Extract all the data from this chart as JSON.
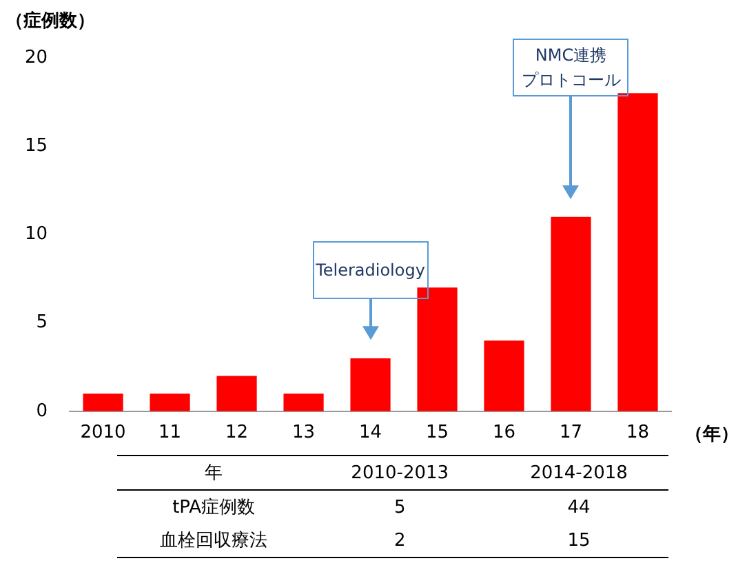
{
  "chart_data": [
    {
      "type": "bar",
      "ylabel": "（症例数）",
      "xlabel": "（年）",
      "categories": [
        "2010",
        "11",
        "12",
        "13",
        "14",
        "15",
        "16",
        "17",
        "18"
      ],
      "values": [
        1,
        1,
        2,
        1,
        3,
        7,
        4,
        11,
        18
      ],
      "color": "#ff0000",
      "ylim": [
        0,
        20
      ],
      "yticks": [
        0,
        5,
        10,
        15,
        20
      ],
      "grid": false,
      "legend": false,
      "annotations": [
        "Teleradiology",
        "NMC連携",
        "プロトコール"
      ]
    },
    {
      "type": "other",
      "categories": [
        "年",
        "2010-2013",
        "2014-2018"
      ],
      "y_categories": [
        "tPA症例数",
        "血栓回収療法"
      ],
      "cells": [
        [
          "5",
          "44"
        ],
        [
          "2",
          "15"
        ]
      ]
    }
  ]
}
